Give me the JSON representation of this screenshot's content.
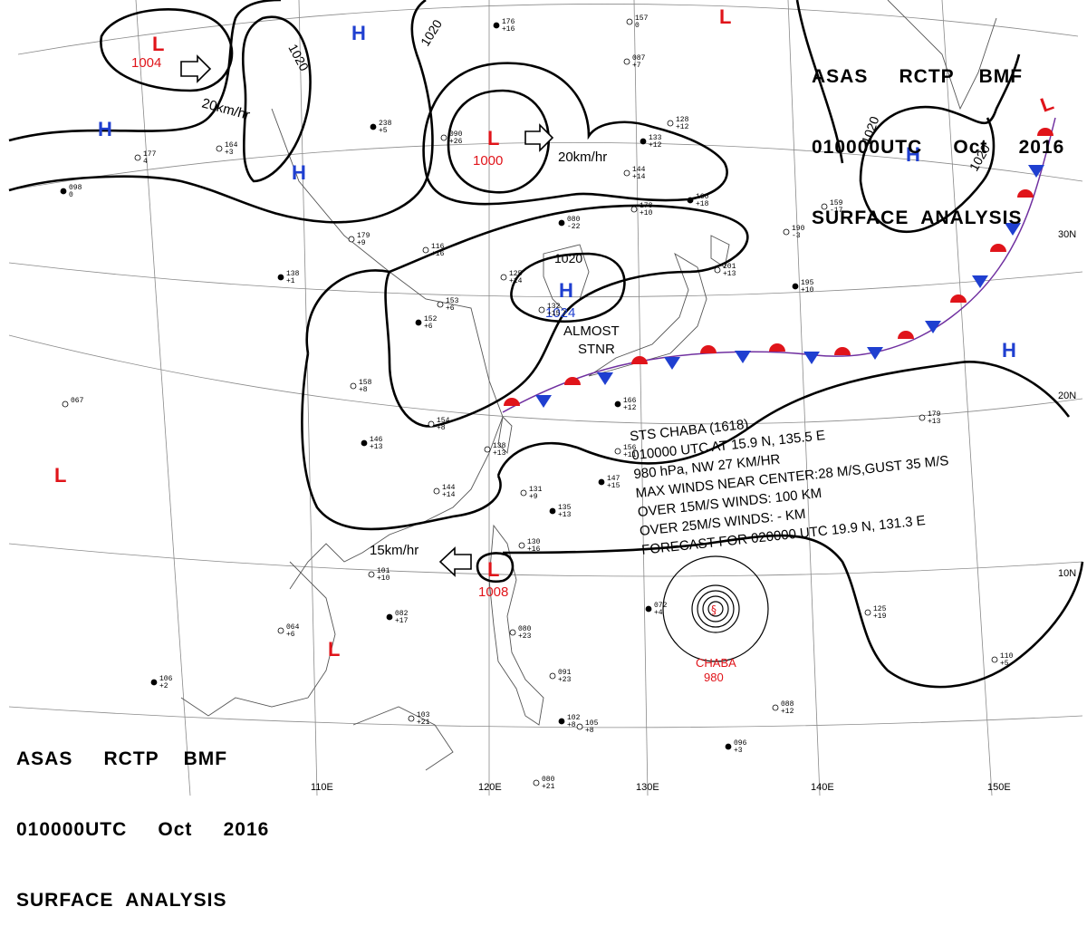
{
  "header_top": {
    "line1": "ASAS     RCTP    BMF",
    "line2": "010000UTC     Oct     2016",
    "line3": "SURFACE  ANALYSIS"
  },
  "header_bottom": {
    "line1": "ASAS     RCTP    BMF",
    "line2": "010000UTC     Oct     2016",
    "line3": "SURFACE  ANALYSIS"
  },
  "lat_labels": [
    "30N",
    "20N",
    "10N"
  ],
  "lon_labels": [
    "110E",
    "120E",
    "130E",
    "140E",
    "150E"
  ],
  "isobar_labels": [
    "1020",
    "1020",
    "1020",
    "1020",
    "1020"
  ],
  "pressure_systems": [
    {
      "type": "L",
      "value": "1004"
    },
    {
      "type": "H",
      "value": ""
    },
    {
      "type": "H",
      "value": ""
    },
    {
      "type": "H",
      "value": ""
    },
    {
      "type": "L",
      "value": "1000"
    },
    {
      "type": "L",
      "value": ""
    },
    {
      "type": "H",
      "value": ""
    },
    {
      "type": "L",
      "value": ""
    },
    {
      "type": "H",
      "value": "1024"
    },
    {
      "type": "H",
      "value": ""
    },
    {
      "type": "L",
      "value": ""
    },
    {
      "type": "L",
      "value": "1008"
    },
    {
      "type": "L",
      "value": ""
    }
  ],
  "motion_labels": [
    "20km/hr",
    "20km/hr",
    "15km/hr"
  ],
  "stationary_label": {
    "line1": "ALMOST",
    "line2": "STNR"
  },
  "storm": {
    "lines": [
      "STS  CHABA  (1618)",
      "010000 UTC  AT 15.9 N, 135.5 E",
      "980 hPa, NW  27 KM/HR",
      "MAX WINDS NEAR CENTER:28 M/S,GUST 35 M/S",
      "OVER 15M/S WINDS: 100 KM",
      "OVER 25M/S WINDS: - KM",
      "FORECAST FOR 020000 UTC 19.9 N, 131.3 E"
    ],
    "name": "CHABA",
    "pressure": "980"
  },
  "colors": {
    "high": "#1f3fd0",
    "low": "#e0141a",
    "isobar": "#000000",
    "grid": "#8a8a8a",
    "coast": "#555555"
  },
  "stations": [
    {
      "p": "176",
      "t": "+16"
    },
    {
      "p": "157",
      "t": "0"
    },
    {
      "p": "087",
      "t": "+7"
    },
    {
      "p": "238",
      "t": "+5"
    },
    {
      "p": "164",
      "t": "+3"
    },
    {
      "p": "177",
      "t": "4"
    },
    {
      "p": "098",
      "t": "0"
    },
    {
      "p": "090",
      "t": "+26"
    },
    {
      "p": "128",
      "t": "+12"
    },
    {
      "p": "133",
      "t": "+12"
    },
    {
      "p": "144",
      "t": "+14"
    },
    {
      "p": "178",
      "t": "+10"
    },
    {
      "p": "160",
      "t": "+18"
    },
    {
      "p": "159",
      "t": "-17"
    },
    {
      "p": "190",
      "t": "-3"
    },
    {
      "p": "080",
      "t": "-22"
    },
    {
      "p": "179",
      "t": "+9"
    },
    {
      "p": "116",
      "t": "+16"
    },
    {
      "p": "138",
      "t": "+1"
    },
    {
      "p": "125",
      "t": "+14"
    },
    {
      "p": "153",
      "t": "+6"
    },
    {
      "p": "152",
      "t": "+6"
    },
    {
      "p": "132",
      "t": "+15"
    },
    {
      "p": "201",
      "t": "+13"
    },
    {
      "p": "195",
      "t": "+10"
    },
    {
      "p": "158",
      "t": "+8"
    },
    {
      "p": "067",
      "t": ""
    },
    {
      "p": "166",
      "t": "+12"
    },
    {
      "p": "179",
      "t": "+13"
    },
    {
      "p": "154",
      "t": "+8"
    },
    {
      "p": "146",
      "t": "+13"
    },
    {
      "p": "138",
      "t": "+13"
    },
    {
      "p": "156",
      "t": "+11"
    },
    {
      "p": "147",
      "t": "+15"
    },
    {
      "p": "144",
      "t": "+14"
    },
    {
      "p": "131",
      "t": "+9"
    },
    {
      "p": "135",
      "t": "+13"
    },
    {
      "p": "130",
      "t": "+16"
    },
    {
      "p": "101",
      "t": "+10"
    },
    {
      "p": "082",
      "t": "+17"
    },
    {
      "p": "064",
      "t": "+6"
    },
    {
      "p": "080",
      "t": "+23"
    },
    {
      "p": "072",
      "t": "+4"
    },
    {
      "p": "125",
      "t": "+19"
    },
    {
      "p": "110",
      "t": "+5"
    },
    {
      "p": "106",
      "t": "+2"
    },
    {
      "p": "091",
      "t": "+23"
    },
    {
      "p": "103",
      "t": "+21"
    },
    {
      "p": "102",
      "t": "+8"
    },
    {
      "p": "105",
      "t": "+8"
    },
    {
      "p": "088",
      "t": "+12"
    },
    {
      "p": "096",
      "t": "+3"
    },
    {
      "p": "080",
      "t": "+21"
    }
  ]
}
